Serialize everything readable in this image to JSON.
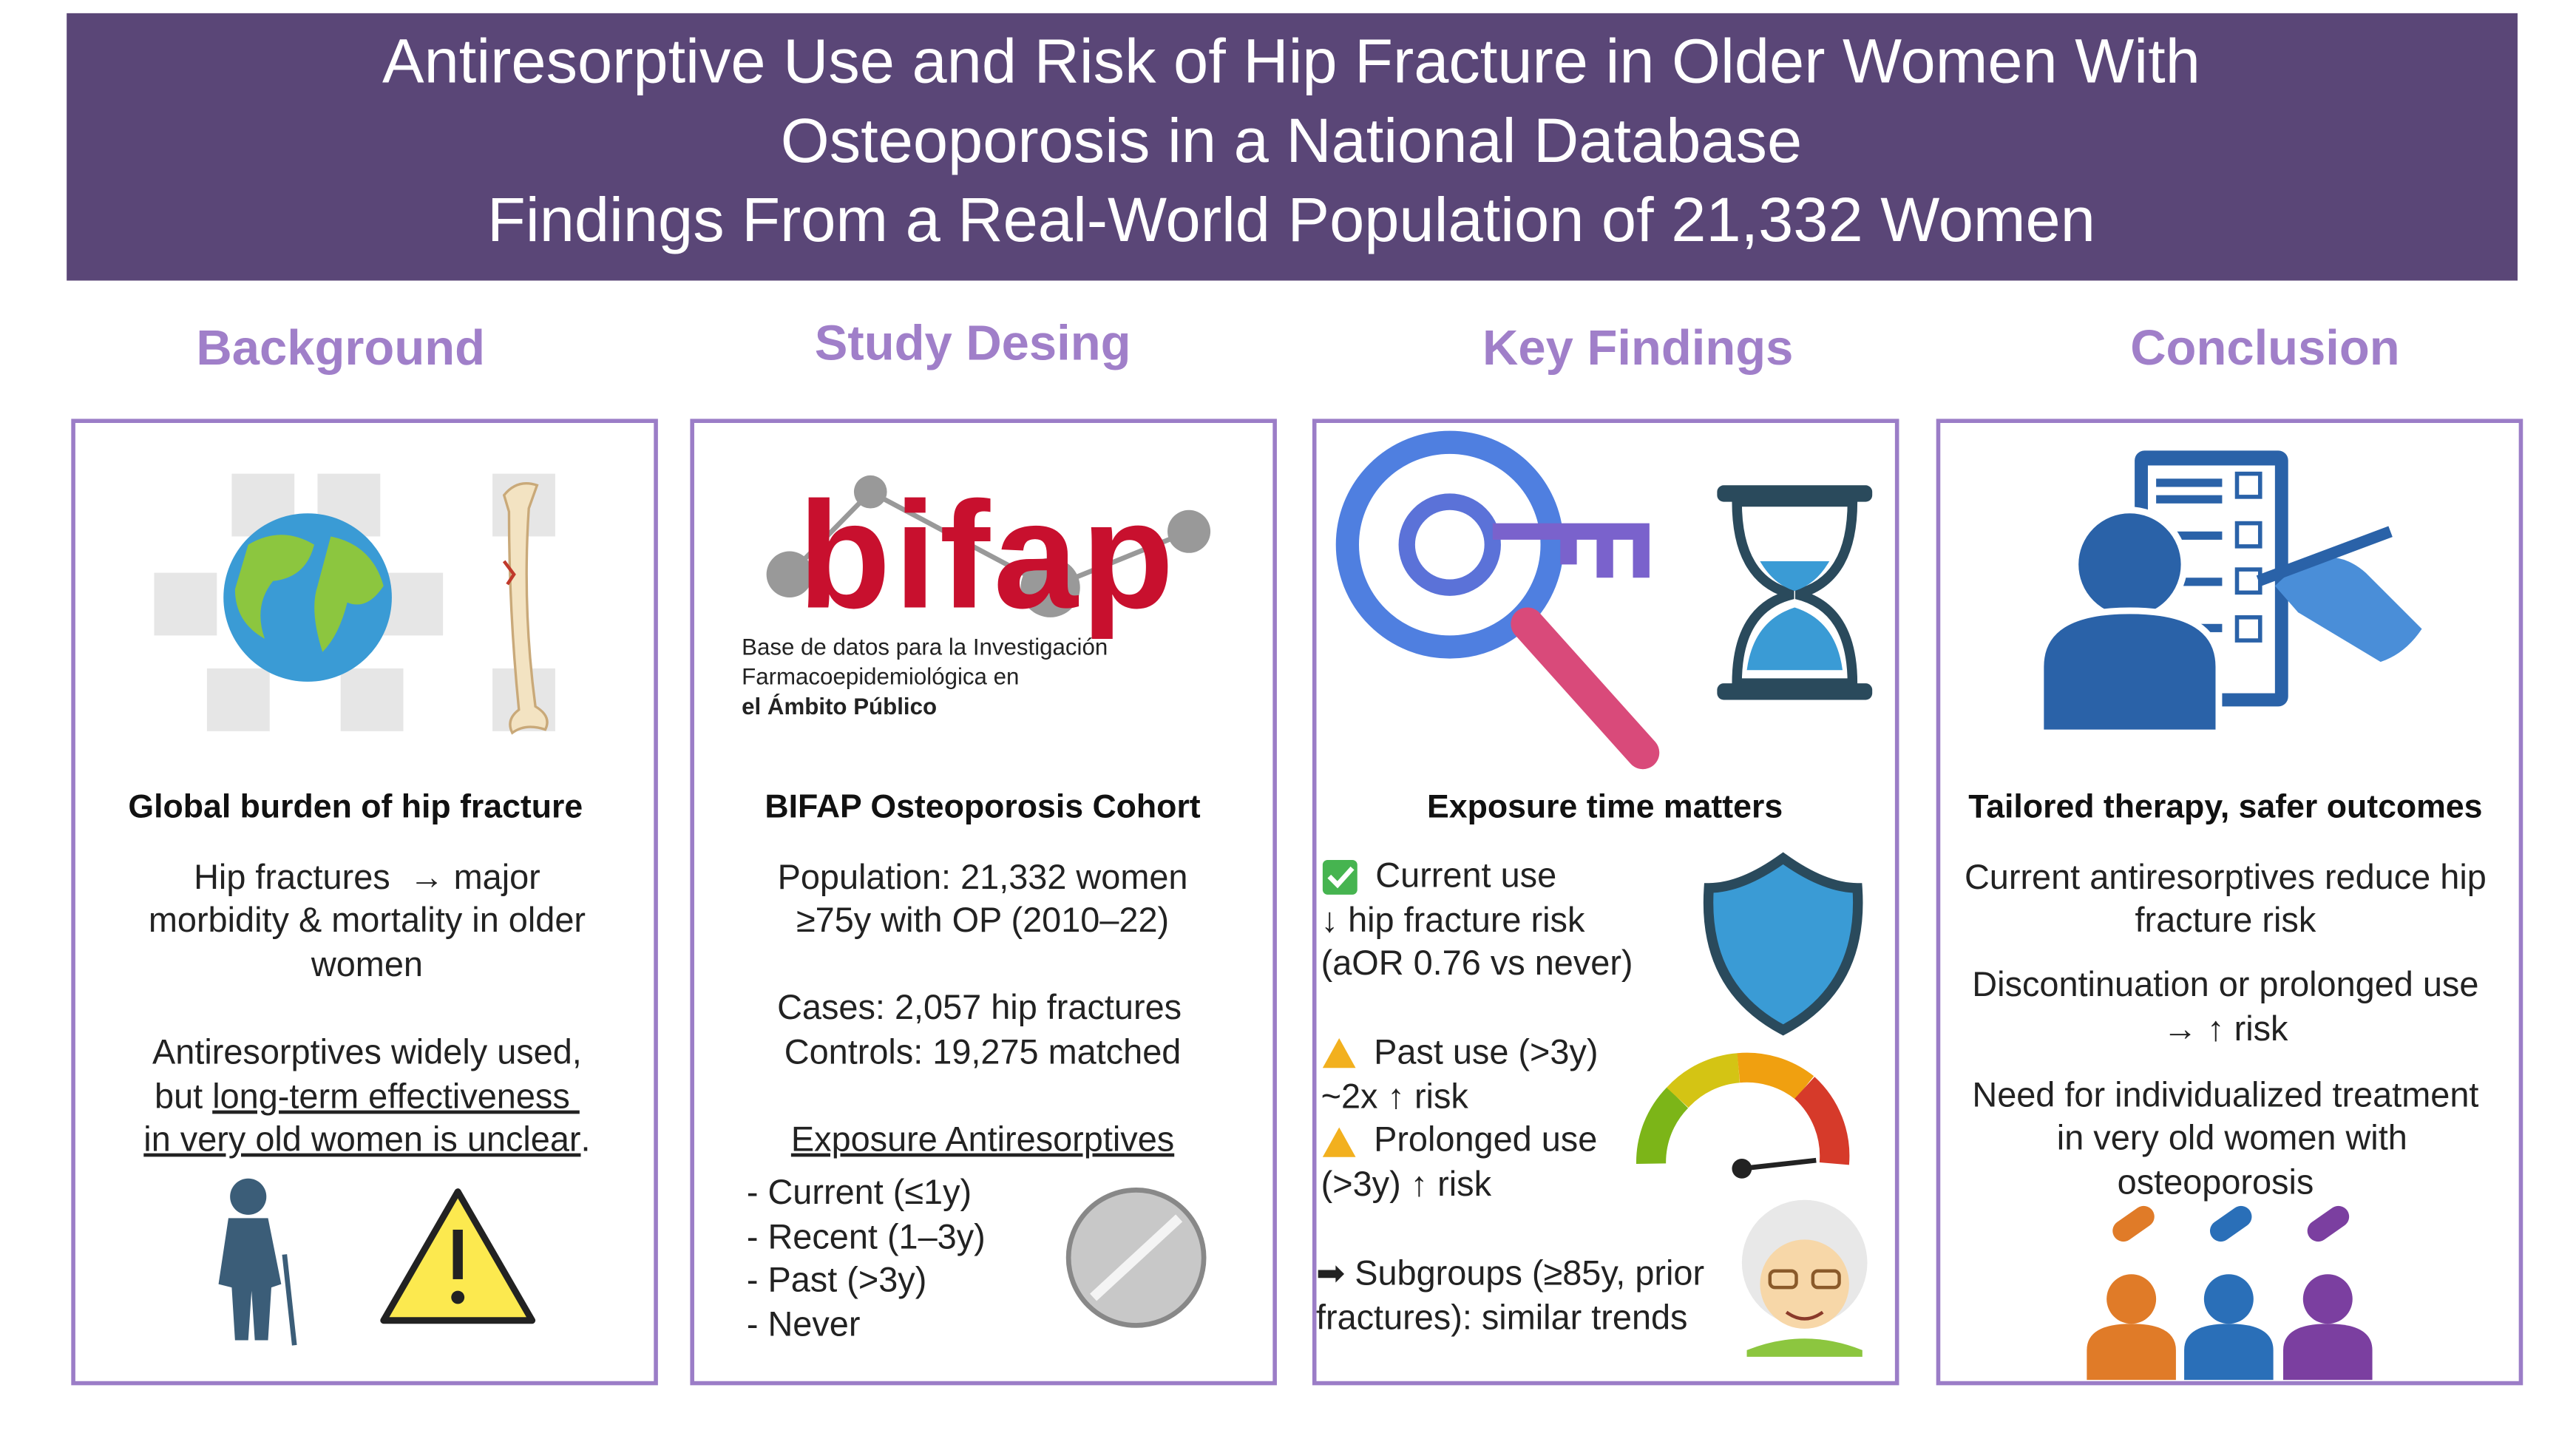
{
  "header": {
    "lines": [
      "Antiresorptive Use and Risk of Hip Fracture in Older Women With",
      "Osteoporosis in a National Database",
      "Findings From a Real-World Population of 21,332 Women"
    ]
  },
  "logo": {
    "name": "bifap",
    "caption": [
      "Base de datos para la Investigación",
      "Farmacoepidemiológica en",
      "el Ámbito Público"
    ]
  },
  "sections": [
    {
      "title": "Background",
      "subtitle": "Global burden of hip fracture",
      "lines": [
        [
          "Hip fractures  → major"
        ],
        [
          "morbidity & mortality in older"
        ],
        [
          "women"
        ],
        [
          "Antiresorptives widely used,"
        ],
        [
          "but ",
          {
            "underline": "long-term effectiveness "
          }
        ],
        [
          {
            "underline": "in very old women is unclear"
          },
          "."
        ]
      ]
    },
    {
      "title": "Study Desing",
      "subtitle": "BIFAP Osteoporosis Cohort",
      "lines": [
        [
          "Population: 21,332 women"
        ],
        [
          "≥75y with OP (2010–22)"
        ],
        [
          "Cases: 2,057 hip fractures"
        ],
        [
          "Controls: 19,275 matched"
        ],
        [
          {
            "underline": "Exposure Antiresorptives"
          }
        ],
        [
          "- Current (≤1y)"
        ],
        [
          "- Recent (1–3y)"
        ],
        [
          "- Past (>3y)"
        ],
        [
          "- Never"
        ]
      ]
    },
    {
      "title": "Key Findings",
      "subtitle": "Exposure time matters",
      "lines": [
        [
          "Current use"
        ],
        [
          "↓ hip fracture risk"
        ],
        [
          "(aOR 0.76 vs never)"
        ],
        [
          "Past use (>3y)"
        ],
        [
          "~2x ↑ risk"
        ],
        [
          "Prolonged use"
        ],
        [
          "(>3y) ↑ risk"
        ],
        [
          "➡ Subgroups (≥85y, prior"
        ],
        [
          "fractures): similar trends"
        ]
      ]
    },
    {
      "title": "Conclusion",
      "subtitle": "Tailored therapy, safer outcomes",
      "lines": [
        [
          "Current antiresorptives reduce hip"
        ],
        [
          "fracture risk"
        ],
        [
          "Discontinuation or prolonged use"
        ],
        [
          "→ ↑ risk"
        ],
        [
          "Need for individualized treatment"
        ],
        [
          "in very old women with"
        ],
        [
          "osteoporosis"
        ]
      ]
    }
  ]
}
